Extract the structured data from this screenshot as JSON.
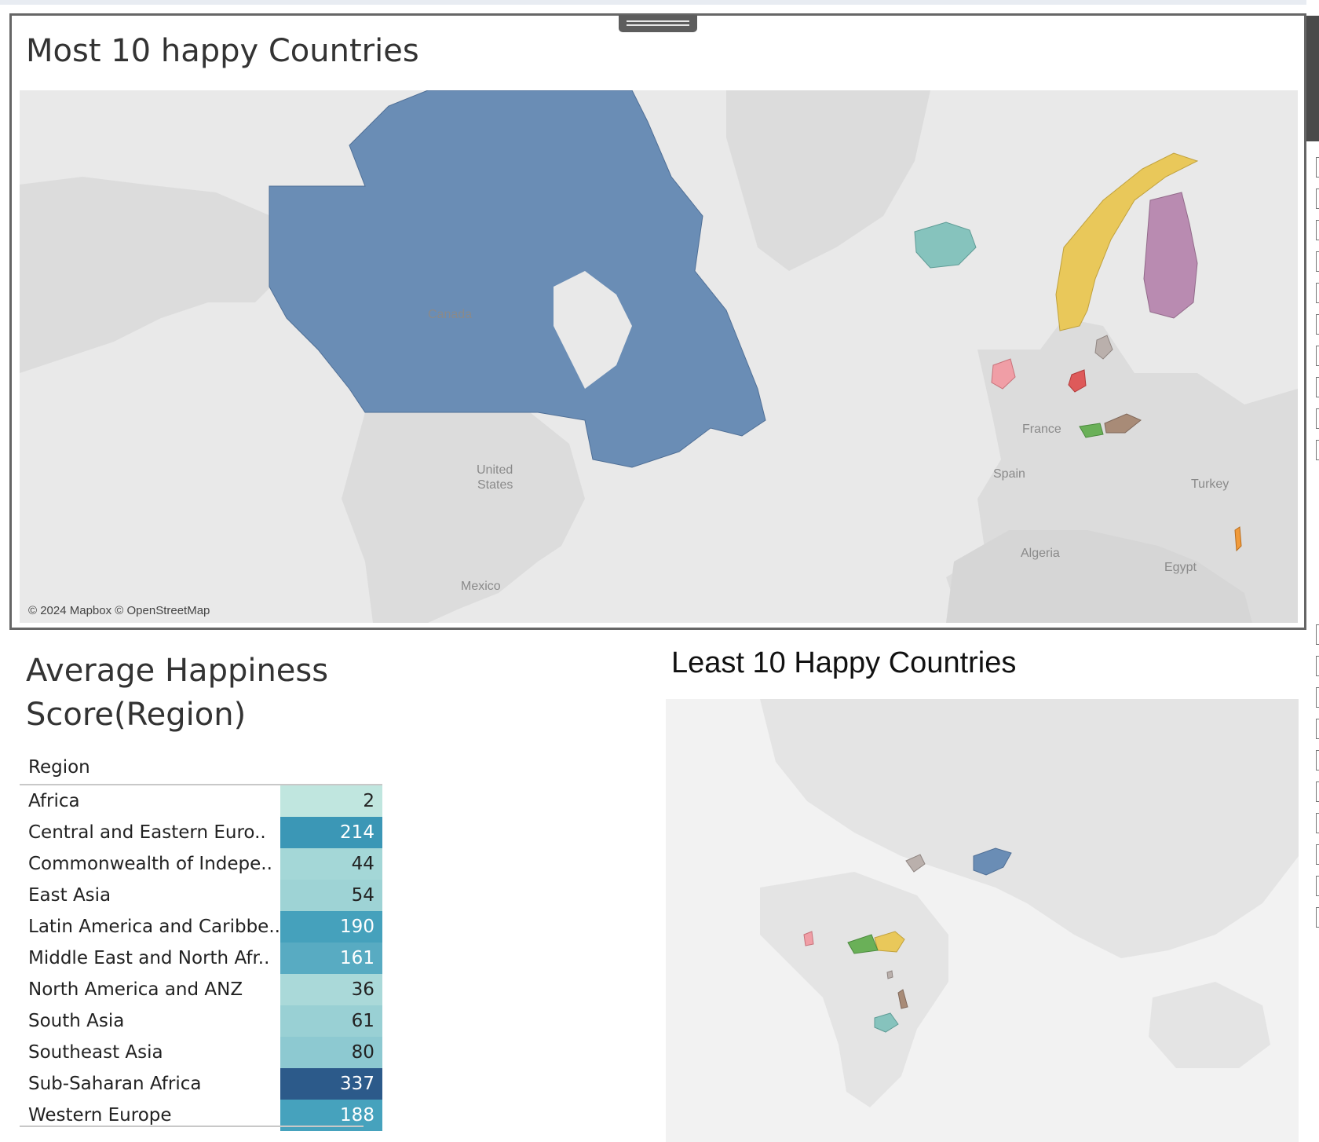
{
  "top_panel": {
    "title": "Most 10 happy Countries",
    "attribution": "© 2024 Mapbox © OpenStreetMap",
    "map_labels": [
      "Canada",
      "United",
      "States",
      "Mexico",
      "France",
      "Spain",
      "Turkey",
      "Algeria",
      "Egypt"
    ]
  },
  "region_panel": {
    "title": "Average Happiness Score(Region)",
    "column_header": "Region",
    "rows": [
      {
        "name": "Africa",
        "value": "2"
      },
      {
        "name": "Central and Eastern Euro..",
        "value": "214"
      },
      {
        "name": "Commonwealth of Indepe..",
        "value": "44"
      },
      {
        "name": "East Asia",
        "value": "54"
      },
      {
        "name": "Latin America and Caribbe..",
        "value": "190"
      },
      {
        "name": "Middle East and North Afr..",
        "value": "161"
      },
      {
        "name": "North America and ANZ",
        "value": "36"
      },
      {
        "name": "South Asia",
        "value": "61"
      },
      {
        "name": "Southeast Asia",
        "value": "80"
      },
      {
        "name": "Sub-Saharan Africa",
        "value": "337"
      },
      {
        "name": "Western Europe",
        "value": "188"
      }
    ]
  },
  "bottom_panel": {
    "title": "Least 10 Happy Countries"
  },
  "colors": {
    "canada": "#6a8db5",
    "norway": "#e9c85a",
    "finland": "#b98bb1",
    "iceland": "#86c3bd",
    "ireland": "#f09ea6",
    "netherlands": "#de5a5a",
    "denmark": "#bab0ac",
    "switzerland": "#6ab058",
    "austria": "#a88b77",
    "israel": "#f09a3a",
    "heat_low": "#c0e6df",
    "heat_high": "#2c5a8a"
  }
}
